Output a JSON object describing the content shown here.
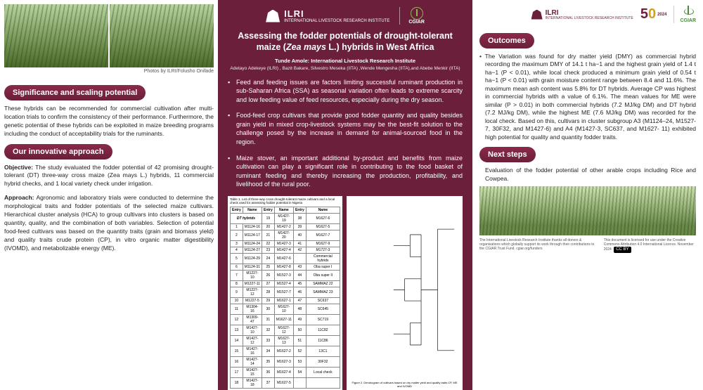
{
  "colors": {
    "brand": "#6b1f3a",
    "accent": "#8ab84a",
    "gold": "#d4a017"
  },
  "left": {
    "photo_caption": "Photos by ILRI/Folusho Onifade",
    "sec1": "Significance and scaling potential",
    "p1": "These hybrids can be recommended for commercial cultivation after multi-location trials to confirm the consistency of their performance. Furthermore, the genetic potential of these hybrids can be exploited in maize breeding programs including the conduct of acceptability trials for the ruminants.",
    "sec2": "Our innovative approach",
    "obj_label": "Objective:",
    "obj": " The study evaluated the fodder potential of 42 promising drought-tolerant (DT) three-way cross maize (Zea mays L.) hybrids, 11 commercial hybrid checks, and 1 local variety check under irrigation.",
    "app_label": "Approach:",
    "app": " Agronomic and laboratory trials were conducted to determine the morphological traits and fodder potentials of the selected maize cultivars. Hierarchical cluster analysis (HCA) to group cultivars into clusters is based on quantity, quality, and the combination of both variables. Selection of potential food-feed cultivars was based on the quantity traits (grain and biomass yield) and quality traits crude protein (CP), in vitro organic matter digestibility (IVOMD), and metabolizable energy (ME)."
  },
  "mid": {
    "ilri": "ILRI",
    "ilri_sub": "INTERNATIONAL\nLIVESTOCK RESEARCH\nINSTITUTE",
    "cgiar": "CGIAR",
    "title_a": "Assessing the fodder potentials of drought-tolerant maize (",
    "title_i": "Zea mays",
    "title_b": " L.) hybrids in West Africa",
    "author_main": "Tunde Amole: International Livestock Research Institute",
    "author_others": "Adetayo Adekeye (ILRI) , Bazit Bakare, Silvestro Meseka (IITA) ,Wende Mengesha (IITA),and Abebe Menkir (IITA)",
    "bullets": [
      "Feed and feeding issues are factors limiting successful ruminant production in sub-Saharan Africa (SSA) as seasonal variation often leads to extreme scarcity and low feeding value of feed resources, especially during the dry season.",
      "Food-feed crop cultivars that provide good fodder quantity and quality besides grain yield in mixed crop-livestock systems may be the best-fit solution to the challenge posed by the increase in demand for animal-sourced food in the region.",
      "Maize stover, an important additional by-product and benefits from maize cultivation can play a significant role in contributing to the food basket of ruminant feeding and thereby increasing the production, profitability, and livelihood of the rural poor."
    ],
    "table": {
      "caption": "Table 1. List of three-way cross drought-tolerant maize cultivars and a local check used for assessing fodder potential in Nigeria",
      "headers": [
        "Entry",
        "Name",
        "Entry",
        "Name",
        "Entry",
        "Name"
      ],
      "section_a": "DT hybrids",
      "rows": [
        [
          "1",
          "M1124-16",
          "20",
          "M1427-2",
          "39",
          "M1627-5"
        ],
        [
          "2",
          "M1124-17",
          "21",
          "M1427-20",
          "40",
          "M1627-7"
        ],
        [
          "3",
          "M1124-24",
          "22",
          "M1427-3",
          "41",
          "M1627-9"
        ],
        [
          "4",
          "M1124-27",
          "23",
          "M1427-4",
          "42",
          "M1727-3"
        ],
        [
          "5",
          "M1124-29",
          "24",
          "M1427-6",
          "",
          "Commercial hybrids"
        ],
        [
          "6",
          "M1124-31",
          "25",
          "M1427-8",
          "43",
          "Oba super I"
        ],
        [
          "7",
          "M1227-10",
          "26",
          "M1527-3",
          "44",
          "Oba super II"
        ],
        [
          "8",
          "M1227-11",
          "27",
          "M1527-4",
          "45",
          "SAMMAZ 22"
        ],
        [
          "9",
          "M1227-12",
          "28",
          "M1527-7",
          "46",
          "SAMMAZ 23"
        ],
        [
          "10",
          "M1227-5",
          "29",
          "M1627-1",
          "47",
          "SC637"
        ],
        [
          "11",
          "M1304-16",
          "30",
          "M1627-10",
          "48",
          "SC645"
        ],
        [
          "12",
          "M1309-47",
          "31",
          "M1627-11",
          "49",
          "SC719"
        ],
        [
          "13",
          "M1427-10",
          "32",
          "M1627-12",
          "50",
          "11C82"
        ],
        [
          "14",
          "M1427-12",
          "33",
          "M1627-13",
          "51",
          "11C86"
        ],
        [
          "15",
          "M1427-16",
          "34",
          "M1627-2",
          "52",
          "13C1"
        ],
        [
          "16",
          "M1427-14",
          "35",
          "M1627-3",
          "53",
          "30F32"
        ],
        [
          "17",
          "M1427-15",
          "36",
          "M1627-4",
          "54",
          "Local check"
        ],
        [
          "18",
          "M1427-18",
          "37",
          "M1627-5",
          "",
          ""
        ]
      ]
    },
    "dendro_caption": "Figure 2. Dendrogram of cultivars based on dry matter yield and quality traits CP, ME and IVOMD"
  },
  "right": {
    "fifty": "50",
    "year": "2024",
    "sec_out": "Outcomes",
    "out_body": "The Variation was found for dry matter yield (DMY) as commercial hybrid recording the maximum DMY of 14.1 t ha−1 and the highest grain yield of 1.4 t ha−1 (P < 0.01), while local check produced a minimum grain yield of 0.54 t ha−1 (P < 0.01) with grain moisture content range between 8.4 and 11.6%. The maximum mean ash content was 5.8% for DT hybrids. Average CP was highest in commercial hybrids with a value of 6.1%. The mean values for ME were similar (P > 0.01) in both commercial hybrids (7.2 MJ/kg DM) and DT hybrid (7.2 MJ/kg DM), while the highest ME (7.6 MJ/kg DM) was recorded for the local check. Based on this, cultivars in cluster subgroup A3 (M1124–24, M1527-7, 30F32, and M1427-6) and A4 (M1427-3, SC637, and M1627- 11) exhibited high potential for quality and quantity fodder traits.",
    "sec_next": "Next steps",
    "next_body": "Evaluation of the fodder potential of other arable crops including Rice and Cowpea.",
    "footer1": "The International Livestock Research Institute thanks all donors & organisations which globally support its work through their contributions to the CGIAR Trust Fund. cgiar.org/funders",
    "footer2": "This document is licensed for use under the Creative Commons Attribution 4.0 International Licence. November 2024",
    "cc": "CC BY"
  }
}
